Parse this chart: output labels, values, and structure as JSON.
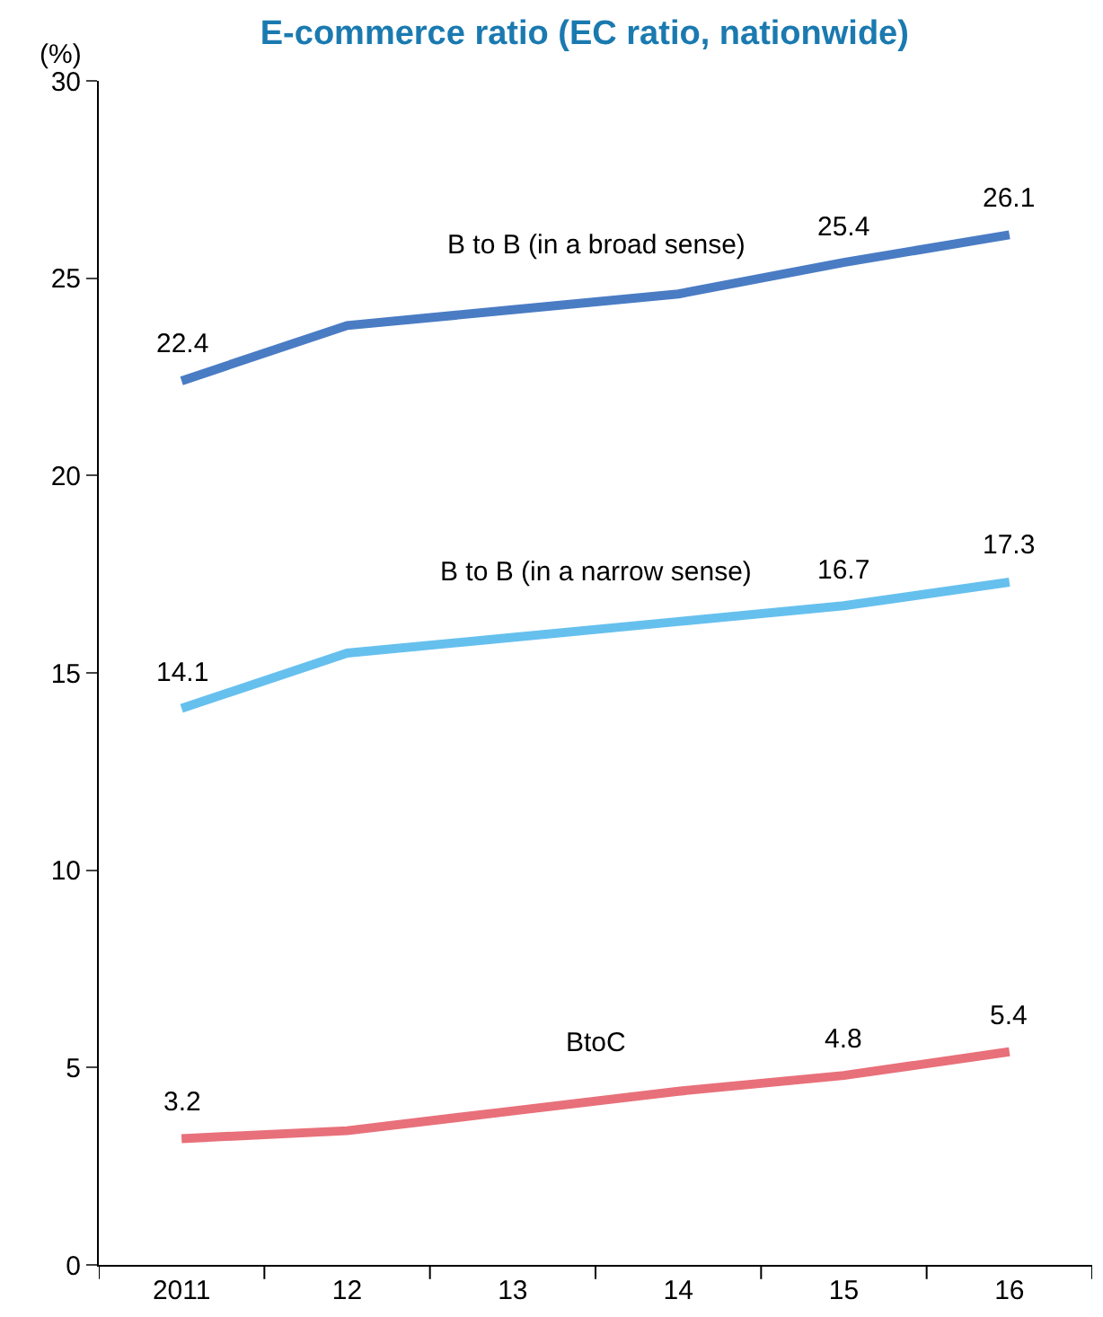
{
  "chart_data": {
    "type": "line",
    "title": "E-commerce ratio (EC ratio, nationwide)",
    "ylabel": "(%)",
    "categories": [
      "2011",
      "12",
      "13",
      "14",
      "15",
      "16"
    ],
    "series": [
      {
        "name": "B to B (in a broad sense)",
        "color": "#4a7cc4",
        "values": [
          22.4,
          23.8,
          24.2,
          24.6,
          25.4,
          26.1
        ],
        "value_labels": [
          "22.4",
          null,
          null,
          null,
          "25.4",
          "26.1"
        ]
      },
      {
        "name": "B to B (in a narrow sense)",
        "color": "#66c0ee",
        "values": [
          14.1,
          15.5,
          15.9,
          16.3,
          16.7,
          17.3
        ],
        "value_labels": [
          "14.1",
          null,
          null,
          null,
          "16.7",
          "17.3"
        ]
      },
      {
        "name": "BtoC",
        "color": "#e8707a",
        "values": [
          3.2,
          3.4,
          3.9,
          4.4,
          4.8,
          5.4
        ],
        "value_labels": [
          "3.2",
          null,
          null,
          null,
          "4.8",
          "5.4"
        ]
      }
    ],
    "ylim": [
      0,
      30
    ],
    "yticks": [
      0,
      5,
      10,
      15,
      20,
      25,
      30
    ],
    "legend": false,
    "marker": "none",
    "line_style": "solid"
  }
}
